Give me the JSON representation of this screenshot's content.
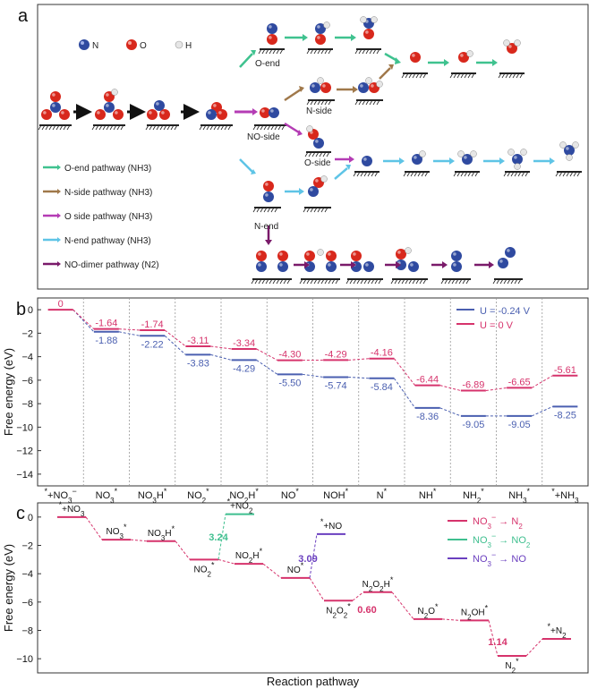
{
  "panel_a": {
    "label": "a",
    "atom_legend": [
      {
        "symbol": "N",
        "color": "#2f4aa0"
      },
      {
        "symbol": "O",
        "color": "#d8281c"
      },
      {
        "symbol": "H",
        "color": "#e6e6e6"
      }
    ],
    "intermediate_labels": {
      "o_end": "O-end",
      "n_side": "N-side",
      "no_side": "NO-side",
      "o_side": "O-side",
      "n_end": "N-end"
    },
    "pathway_legend": [
      {
        "label": "O-end pathway (NH3)",
        "color": "#3fc28f"
      },
      {
        "label": "N-side pathway (NH3)",
        "color": "#a0784a"
      },
      {
        "label": "O side pathway (NH3)",
        "color": "#b43cb4"
      },
      {
        "label": "N-end pathway (NH3)",
        "color": "#5ec4e6"
      },
      {
        "label": "NO-dimer pathway (N2)",
        "color": "#7a1a6a"
      }
    ]
  },
  "panel_b": {
    "label": "b"
  },
  "panel_c": {
    "label": "c"
  },
  "chart_data": [
    {
      "type": "line",
      "title": "",
      "xlabel": "",
      "ylabel": "Free energy (eV)",
      "ylim": [
        -15,
        1
      ],
      "yticks": [
        0,
        -2,
        -4,
        -6,
        -8,
        -10,
        -12,
        -14
      ],
      "categories": [
        "*+NO3⁻",
        "NO3*",
        "NO3H*",
        "NO2*",
        "NO2H*",
        "NO*",
        "NOH*",
        "N*",
        "NH*",
        "NH2*",
        "NH3*",
        "*+NH3"
      ],
      "legend_position": "top-right",
      "series": [
        {
          "name": "U = -0.24 V",
          "color": "#4a5fb0",
          "values": [
            0,
            -1.88,
            -2.22,
            -3.83,
            -4.29,
            -5.5,
            -5.74,
            -5.84,
            -8.36,
            -9.05,
            -9.05,
            -8.25
          ],
          "labels": [
            "",
            "-1.88",
            "-2.22",
            "-3.83",
            "-4.29",
            "-5.50",
            "-5.74",
            "-5.84",
            "-8.36",
            "-9.05",
            "-9.05",
            "-8.25"
          ]
        },
        {
          "name": "U = 0 V",
          "color": "#d6336c",
          "values": [
            0,
            -1.64,
            -1.74,
            -3.11,
            -3.34,
            -4.3,
            -4.29,
            -4.16,
            -6.44,
            -6.89,
            -6.65,
            -5.61
          ],
          "labels": [
            "0",
            "-1.64",
            "-1.74",
            "-3.11",
            "-3.34",
            "-4.30",
            "-4.29",
            "-4.16",
            "-6.44",
            "-6.89",
            "-6.65",
            "-5.61"
          ]
        }
      ]
    },
    {
      "type": "line",
      "title": "",
      "xlabel": "Reaction pathway",
      "ylabel": "Free energy (eV)",
      "ylim": [
        -11,
        1
      ],
      "yticks": [
        0,
        -2,
        -4,
        -6,
        -8,
        -10
      ],
      "legend_position": "top-right",
      "series": [
        {
          "name": "NO3⁻ → N2",
          "color": "#d6336c",
          "states": [
            {
              "label": "*+NO3",
              "value": 0
            },
            {
              "label": "NO3*",
              "value": -1.6
            },
            {
              "label": "NO3H*",
              "value": -1.7
            },
            {
              "label": "NO2*",
              "value": -3.0
            },
            {
              "label": "NO2H*",
              "value": -3.3
            },
            {
              "label": "NO*",
              "value": -4.3
            },
            {
              "label": "N2O2*",
              "value": -5.9
            },
            {
              "label": "N2O2H*",
              "value": -5.3
            },
            {
              "label": "N2O*",
              "value": -7.2
            },
            {
              "label": "N2OH*",
              "value": -7.3
            },
            {
              "label": "N2*",
              "value": -9.8
            },
            {
              "label": "*+N2",
              "value": -8.6
            }
          ]
        },
        {
          "name": "NO3⁻ → NO2",
          "color": "#3fbf8f",
          "states": [
            {
              "label": "NO2*",
              "value": -3.0
            },
            {
              "label": "*+NO2",
              "value": 0.2
            }
          ]
        },
        {
          "name": "NO3⁻ → NO",
          "color": "#6a3fbf",
          "states": [
            {
              "label": "NO*",
              "value": -4.3
            },
            {
              "label": "*+NO",
              "value": -1.2
            }
          ]
        }
      ],
      "annotations": [
        {
          "text": "3.24",
          "color": "#3fbf8f"
        },
        {
          "text": "3.09",
          "color": "#6a3fbf"
        },
        {
          "text": "0.60",
          "color": "#d6336c"
        },
        {
          "text": "1.14",
          "color": "#d6336c"
        }
      ]
    }
  ]
}
